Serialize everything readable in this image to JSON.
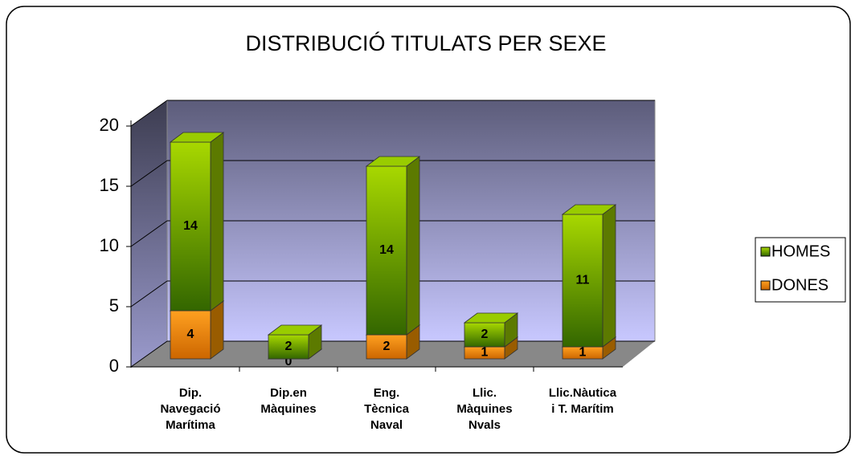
{
  "chart_data": {
    "type": "bar3d_stacked",
    "title": "DISTRIBUCIÓ TITULATS PER SEXE",
    "categories": [
      [
        "Dip.",
        "Navegació",
        "Marítima"
      ],
      [
        "Dip.en",
        "Màquines"
      ],
      [
        "Eng.",
        "Tècnica",
        "Naval"
      ],
      [
        "Llic.",
        "Màquines",
        "Nvals"
      ],
      [
        "Llic.Nàutica",
        "i T. Marítim"
      ]
    ],
    "series": [
      {
        "name": "DONES",
        "color": "#ff9900",
        "values": [
          4,
          0,
          2,
          1,
          1
        ]
      },
      {
        "name": "HOMES",
        "color": "#99cc00",
        "values": [
          14,
          2,
          14,
          2,
          11
        ]
      }
    ],
    "ylim": [
      0,
      20
    ],
    "yticks": [
      0,
      5,
      10,
      15,
      20
    ],
    "grid": true,
    "legend": "right"
  }
}
